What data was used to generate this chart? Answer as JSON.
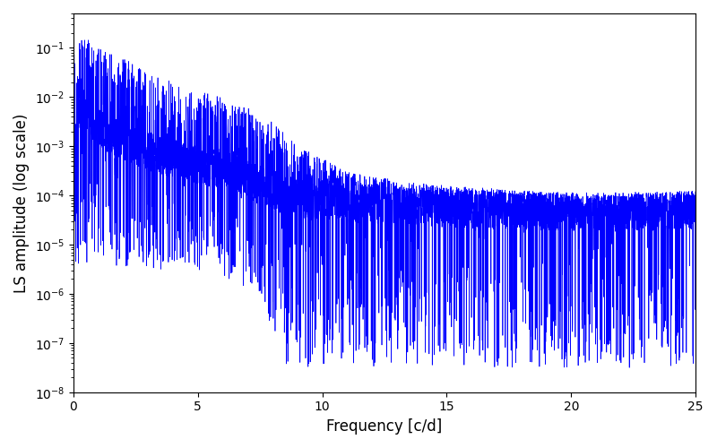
{
  "title": "",
  "xlabel": "Frequency [c/d]",
  "ylabel": "LS amplitude (log scale)",
  "line_color": "#0000FF",
  "line_width": 0.5,
  "xlim": [
    0,
    25
  ],
  "ylim": [
    1e-08,
    0.5
  ],
  "xticks": [
    0,
    5,
    10,
    15,
    20,
    25
  ],
  "freq_min": 0.0,
  "freq_max": 25.0,
  "n_points": 5000,
  "seed": 42,
  "background_color": "#ffffff",
  "figsize": [
    8.0,
    5.0
  ],
  "dpi": 100
}
